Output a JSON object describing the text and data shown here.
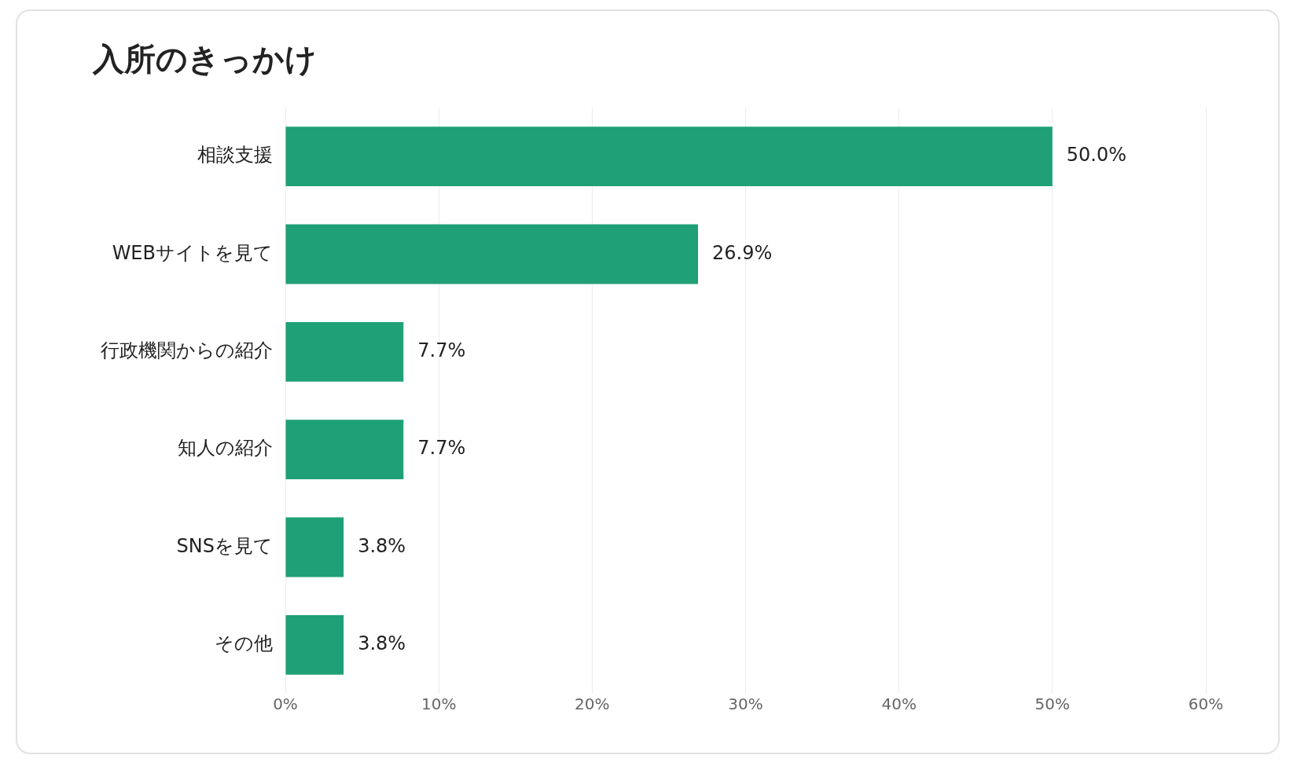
{
  "chart_data": {
    "type": "bar",
    "orientation": "horizontal",
    "title": "入所のきっかけ",
    "categories": [
      "相談支援",
      "WEBサイトを見て",
      "行政機関からの紹介",
      "知人の紹介",
      "SNSを見て",
      "その他"
    ],
    "values": [
      50.0,
      26.9,
      7.7,
      7.7,
      3.8,
      3.8
    ],
    "value_labels": [
      "50.0%",
      "26.9%",
      "7.7%",
      "7.7%",
      "3.8%",
      "3.8%"
    ],
    "color": "#1fa077",
    "xlim": [
      0,
      60
    ],
    "xticks": [
      {
        "value": 0,
        "label": "0%"
      },
      {
        "value": 10,
        "label": "10%"
      },
      {
        "value": 20,
        "label": "20%"
      },
      {
        "value": 30,
        "label": "30%"
      },
      {
        "value": 40,
        "label": "40%"
      },
      {
        "value": 50,
        "label": "50%"
      },
      {
        "value": 60,
        "label": "60%"
      }
    ],
    "grid": "x"
  }
}
